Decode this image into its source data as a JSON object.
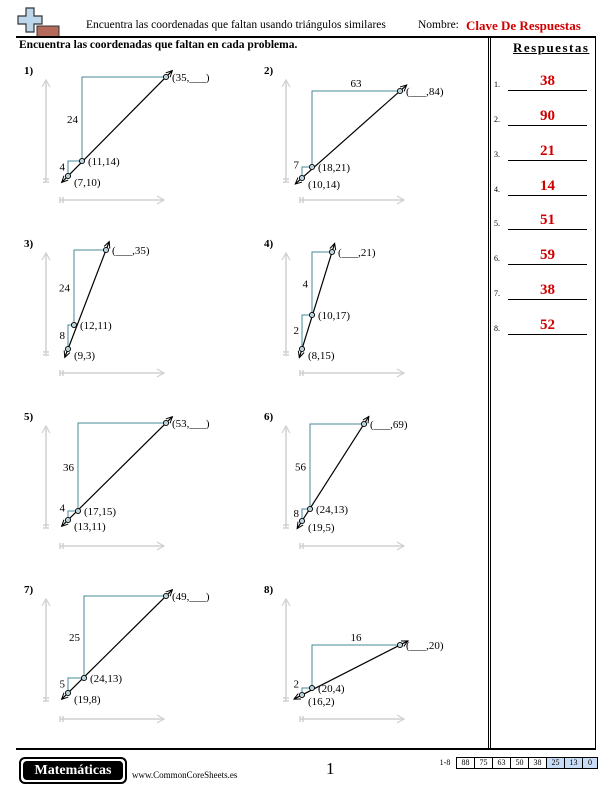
{
  "header": {
    "title": "Encuentra las coordenadas que faltan usando triángulos similares",
    "name_label": "Nombre:",
    "name_value": "Clave De Respuestas"
  },
  "instructions": "Encuentra las coordenadas que faltan en cada problema.",
  "answers_heading": "Respuestas",
  "answers": [
    {
      "num": "1.",
      "value": "38"
    },
    {
      "num": "2.",
      "value": "90"
    },
    {
      "num": "3.",
      "value": "21"
    },
    {
      "num": "4.",
      "value": "14"
    },
    {
      "num": "5.",
      "value": "51"
    },
    {
      "num": "6.",
      "value": "59"
    },
    {
      "num": "7.",
      "value": "38"
    },
    {
      "num": "8.",
      "value": "52"
    }
  ],
  "problems": [
    {
      "label": "1)",
      "p1": "(7,10)",
      "p2": "(11,14)",
      "p3": "(35,___)",
      "small_leg": "4",
      "big_leg": "24"
    },
    {
      "label": "2)",
      "p1": "(10,14)",
      "p2": "(18,21)",
      "p3": "(___,84)",
      "small_leg": "7",
      "big_leg": "63"
    },
    {
      "label": "3)",
      "p1": "(9,3)",
      "p2": "(12,11)",
      "p3": "(___,35)",
      "small_leg": "8",
      "big_leg": "24"
    },
    {
      "label": "4)",
      "p1": "(8,15)",
      "p2": "(10,17)",
      "p3": "(___,21)",
      "small_leg": "2",
      "big_leg": "4"
    },
    {
      "label": "5)",
      "p1": "(13,11)",
      "p2": "(17,15)",
      "p3": "(53,___)",
      "small_leg": "4",
      "big_leg": "36"
    },
    {
      "label": "6)",
      "p1": "(19,5)",
      "p2": "(24,13)",
      "p3": "(___,69)",
      "small_leg": "8",
      "big_leg": "56"
    },
    {
      "label": "7)",
      "p1": "(19,8)",
      "p2": "(24,13)",
      "p3": "(49,___)",
      "small_leg": "5",
      "big_leg": "25"
    },
    {
      "label": "8)",
      "p1": "(16,2)",
      "p2": "(20,4)",
      "p3": "(___,20)",
      "small_leg": "2",
      "big_leg": "16"
    }
  ],
  "footer": {
    "badge": "Matemáticas",
    "site": "www.CommonCoreSheets.es",
    "page": "1",
    "score_label": "1-8",
    "scores": [
      "88",
      "75",
      "63",
      "50",
      "38",
      "25",
      "13",
      "0"
    ]
  },
  "colors": {
    "accent_red": "#d10000",
    "leg_color": "#4a8a9a",
    "highlight": "#c8dcf5"
  }
}
